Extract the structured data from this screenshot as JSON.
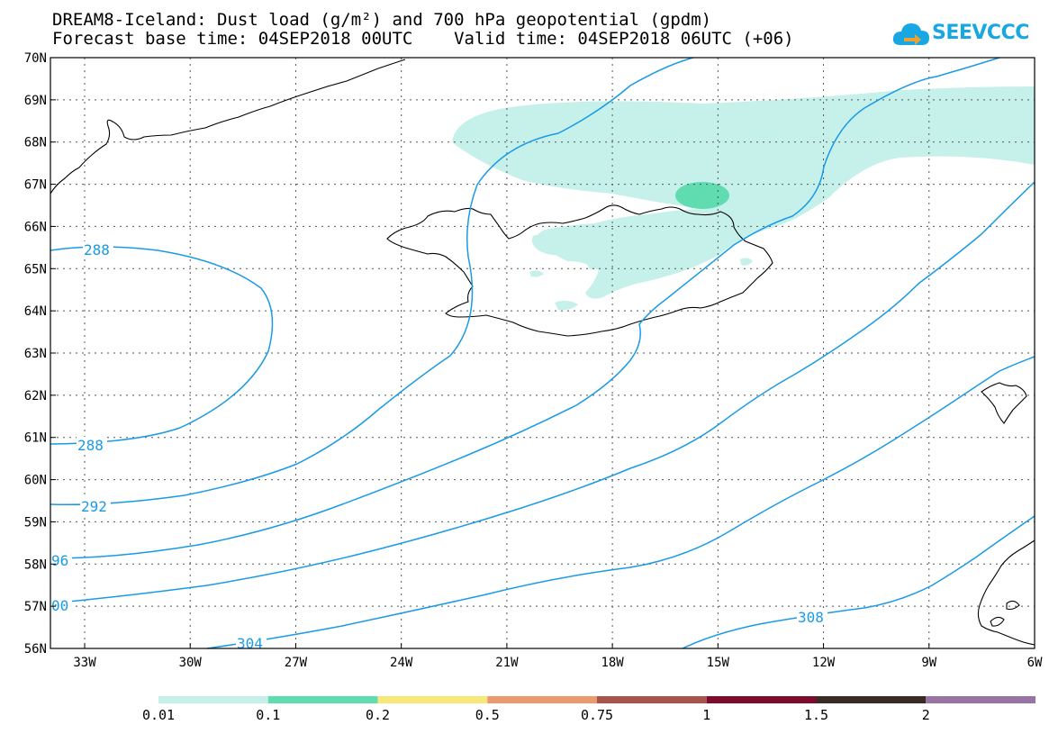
{
  "header": {
    "title": "DREAM8-Iceland: Dust load (g/m²) and 700 hPa geopotential (gpdm)",
    "subtitle": "Forecast base time: 04SEP2018 00UTC    Valid time: 04SEP2018 06UTC (+06)"
  },
  "logo": {
    "text": "SEEVCCC",
    "icon": "cloud-arrow-icon",
    "color": "#19a7e3"
  },
  "map": {
    "lat_labels": [
      "56N",
      "57N",
      "58N",
      "59N",
      "60N",
      "61N",
      "62N",
      "63N",
      "64N",
      "65N",
      "66N",
      "67N",
      "68N",
      "69N",
      "70N"
    ],
    "lon_labels": [
      "33W",
      "30W",
      "27W",
      "24W",
      "21W",
      "18W",
      "15W",
      "12W",
      "9W",
      "6W"
    ],
    "contour_labels": [
      {
        "text": "288",
        "color": "#1a9ae6"
      },
      {
        "text": "288",
        "color": "#1a9ae6"
      },
      {
        "text": "292",
        "color": "#1a9ae6"
      },
      {
        "text": "96",
        "color": "#1a9ae6"
      },
      {
        "text": "00",
        "color": "#1a9ae6"
      },
      {
        "text": "304",
        "color": "#1a9ae6"
      },
      {
        "text": "308",
        "color": "#1a9ae6"
      }
    ],
    "contour_color": "#1a9ae6",
    "dust_fill_colors": [
      "#c6f0ea",
      "#5fdcb0"
    ]
  },
  "colorbar": {
    "colors": [
      "#c6f0ea",
      "#5fdcb0",
      "#f8e87a",
      "#eb9a6e",
      "#a8544b",
      "#7e0a2c",
      "#3a2a24",
      "#9774a3"
    ],
    "labels": [
      "0.01",
      "0.1",
      "0.2",
      "0.5",
      "0.75",
      "1",
      "1.5",
      "2"
    ]
  }
}
